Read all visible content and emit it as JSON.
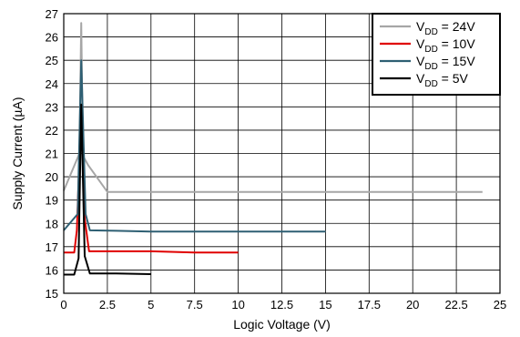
{
  "chart_data": {
    "type": "line",
    "xlabel": "Logic Voltage (V)",
    "ylabel": "Supply Current (µA)",
    "xlim": [
      0,
      25
    ],
    "ylim": [
      15,
      27
    ],
    "x_ticks": [
      0,
      2.5,
      5,
      7.5,
      10,
      12.5,
      15,
      17.5,
      20,
      22.5,
      25
    ],
    "x_tick_labels": [
      "0",
      "2.5",
      "5",
      "7.5",
      "10",
      "12.5",
      "15",
      "17.5",
      "20",
      "22.5",
      "25"
    ],
    "y_ticks": [
      15,
      16,
      17,
      18,
      19,
      20,
      21,
      22,
      23,
      24,
      25,
      26,
      27
    ],
    "y_tick_labels": [
      "15",
      "16",
      "17",
      "18",
      "19",
      "20",
      "21",
      "22",
      "23",
      "24",
      "25",
      "26",
      "27"
    ],
    "grid": true,
    "legend_position": "top-right",
    "series": [
      {
        "name_main": "V",
        "name_sub": "DD",
        "name_rest": " = 24V",
        "color": "#a6a6a6",
        "x": [
          0,
          0.9,
          1.0,
          1.1,
          1.4,
          2.5,
          5,
          10,
          15,
          20,
          24
        ],
        "y": [
          19.4,
          21.0,
          26.6,
          20.9,
          20.5,
          19.35,
          19.35,
          19.35,
          19.35,
          19.35,
          19.35
        ]
      },
      {
        "name_main": "V",
        "name_sub": "DD",
        "name_rest": " = 10V",
        "color": "#e00000",
        "x": [
          0,
          0.6,
          0.75,
          1.0,
          1.2,
          1.45,
          3,
          5,
          7.5,
          10
        ],
        "y": [
          16.75,
          16.75,
          17.7,
          23.0,
          18.2,
          16.8,
          16.8,
          16.8,
          16.75,
          16.75
        ]
      },
      {
        "name_main": "V",
        "name_sub": "DD",
        "name_rest": " = 15V",
        "color": "#2e5f73",
        "x": [
          0,
          0.8,
          1.0,
          1.25,
          1.5,
          3,
          5,
          10,
          15
        ],
        "y": [
          17.7,
          18.4,
          25.0,
          18.4,
          17.7,
          17.68,
          17.65,
          17.65,
          17.65
        ]
      },
      {
        "name_main": "V",
        "name_sub": "DD",
        "name_rest": " = 5V",
        "color": "#000000",
        "x": [
          0,
          0.6,
          0.85,
          1.0,
          1.2,
          1.5,
          3,
          5
        ],
        "y": [
          15.8,
          15.8,
          16.5,
          23.1,
          16.6,
          15.85,
          15.85,
          15.82
        ]
      }
    ]
  }
}
